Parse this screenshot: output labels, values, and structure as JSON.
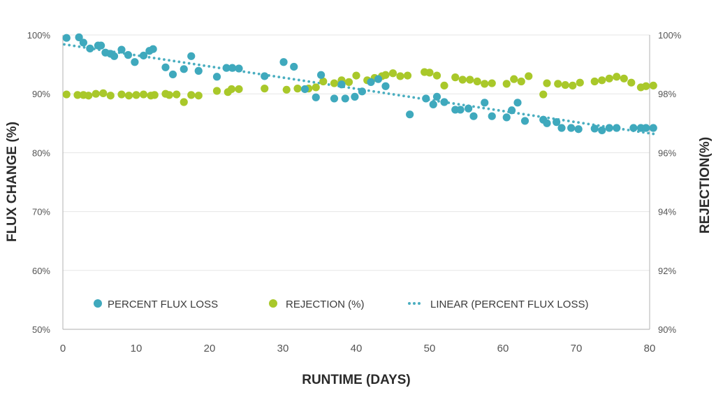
{
  "chart_data": {
    "type": "scatter",
    "title": "",
    "xlabel": "RUNTIME (DAYS)",
    "ylabel_left": "FLUX CHANGE (%)",
    "ylabel_right": "REJECTION(%)",
    "xlim": [
      0,
      80
    ],
    "ylim_left": [
      50,
      100
    ],
    "ylim_right": [
      90,
      100
    ],
    "x_ticks": [
      0,
      10,
      20,
      30,
      40,
      50,
      60,
      70,
      80
    ],
    "y_ticks_left": [
      "50%",
      "60%",
      "70%",
      "80%",
      "90%",
      "100%"
    ],
    "y_ticks_right": [
      "90%",
      "92%",
      "94%",
      "96%",
      "98%",
      "100%"
    ],
    "grid": "horizontal",
    "legend_position": "bottom-inside",
    "colors": {
      "flux": "#3fa9bd",
      "rejection": "#a9c82a",
      "trend": "#4aaec0"
    },
    "series": [
      {
        "name": "PERCENT FLUX LOSS",
        "axis": "left",
        "color": "#3fa9bd",
        "points": [
          [
            0.5,
            99.5
          ],
          [
            2.2,
            99.6
          ],
          [
            2.8,
            98.7
          ],
          [
            3.7,
            97.7
          ],
          [
            4.8,
            98.2
          ],
          [
            5.2,
            98.2
          ],
          [
            5.8,
            97
          ],
          [
            6.5,
            96.8
          ],
          [
            7,
            96.4
          ],
          [
            8,
            97.5
          ],
          [
            8.9,
            96.6
          ],
          [
            9.8,
            95.4
          ],
          [
            11,
            96.5
          ],
          [
            11.8,
            97.3
          ],
          [
            12.3,
            97.6
          ],
          [
            14,
            94.5
          ],
          [
            15,
            93.3
          ],
          [
            16.5,
            94.2
          ],
          [
            17.5,
            96.4
          ],
          [
            18.5,
            93.9
          ],
          [
            21,
            92.9
          ],
          [
            22.3,
            94.4
          ],
          [
            23.1,
            94.4
          ],
          [
            24,
            94.3
          ],
          [
            27.5,
            93
          ],
          [
            30.1,
            95.4
          ],
          [
            31.5,
            94.6
          ],
          [
            33,
            90.8
          ],
          [
            34.5,
            89.4
          ],
          [
            35.2,
            93.2
          ],
          [
            37,
            89.2
          ],
          [
            38,
            91.6
          ],
          [
            38.5,
            89.2
          ],
          [
            39.8,
            89.5
          ],
          [
            40.8,
            90.4
          ],
          [
            42,
            92
          ],
          [
            43,
            92.5
          ],
          [
            44,
            91.3
          ],
          [
            47.3,
            86.5
          ],
          [
            49.5,
            89.2
          ],
          [
            50.5,
            88.2
          ],
          [
            51,
            89.5
          ],
          [
            52,
            88.6
          ],
          [
            53.5,
            87.3
          ],
          [
            54.2,
            87.3
          ],
          [
            55.3,
            87.5
          ],
          [
            56,
            86.2
          ],
          [
            57.5,
            88.5
          ],
          [
            58.5,
            86.2
          ],
          [
            60.5,
            86
          ],
          [
            61.2,
            87.2
          ],
          [
            62,
            88.5
          ],
          [
            63,
            85.4
          ],
          [
            65.5,
            85.6
          ],
          [
            66,
            85
          ],
          [
            67.3,
            85.2
          ],
          [
            68,
            84.2
          ],
          [
            69.3,
            84.2
          ],
          [
            70.3,
            84
          ],
          [
            72.5,
            84.1
          ],
          [
            73.5,
            83.8
          ],
          [
            74.5,
            84.2
          ],
          [
            75.5,
            84.2
          ],
          [
            77.8,
            84.2
          ],
          [
            78.8,
            84.2
          ],
          [
            79.5,
            84.2
          ],
          [
            80.5,
            84.2
          ]
        ]
      },
      {
        "name": "REJECTION (%)",
        "axis": "right",
        "color": "#a9c82a",
        "points": [
          [
            0.5,
            97.98
          ],
          [
            2,
            97.96
          ],
          [
            2.8,
            97.96
          ],
          [
            3.5,
            97.94
          ],
          [
            4.5,
            98
          ],
          [
            5.5,
            98.02
          ],
          [
            6.5,
            97.94
          ],
          [
            8,
            97.98
          ],
          [
            9,
            97.94
          ],
          [
            10,
            97.96
          ],
          [
            11,
            97.98
          ],
          [
            12,
            97.94
          ],
          [
            12.5,
            97.96
          ],
          [
            14,
            98
          ],
          [
            14.5,
            97.96
          ],
          [
            15.5,
            97.98
          ],
          [
            16.5,
            97.72
          ],
          [
            17.5,
            97.96
          ],
          [
            18.5,
            97.94
          ],
          [
            21,
            98.1
          ],
          [
            22.5,
            98.06
          ],
          [
            23,
            98.16
          ],
          [
            24,
            98.16
          ],
          [
            27.5,
            98.18
          ],
          [
            30.5,
            98.14
          ],
          [
            32,
            98.18
          ],
          [
            33.5,
            98.18
          ],
          [
            34.5,
            98.22
          ],
          [
            35.5,
            98.42
          ],
          [
            37,
            98.36
          ],
          [
            38,
            98.46
          ],
          [
            39,
            98.4
          ],
          [
            40,
            98.62
          ],
          [
            41.5,
            98.46
          ],
          [
            42.5,
            98.54
          ],
          [
            43.5,
            98.6
          ],
          [
            44,
            98.64
          ],
          [
            45,
            98.7
          ],
          [
            46,
            98.6
          ],
          [
            47,
            98.62
          ],
          [
            49.3,
            98.74
          ],
          [
            50,
            98.72
          ],
          [
            51,
            98.62
          ],
          [
            52,
            98.28
          ],
          [
            53.5,
            98.56
          ],
          [
            54.5,
            98.48
          ],
          [
            55.5,
            98.48
          ],
          [
            56.5,
            98.42
          ],
          [
            57.5,
            98.34
          ],
          [
            58.5,
            98.36
          ],
          [
            60.5,
            98.34
          ],
          [
            61.5,
            98.5
          ],
          [
            62.5,
            98.42
          ],
          [
            63.5,
            98.6
          ],
          [
            65.5,
            97.98
          ],
          [
            66,
            98.36
          ],
          [
            67.5,
            98.34
          ],
          [
            68.5,
            98.3
          ],
          [
            69.5,
            98.28
          ],
          [
            70.5,
            98.38
          ],
          [
            72.5,
            98.42
          ],
          [
            73.5,
            98.46
          ],
          [
            74.5,
            98.52
          ],
          [
            75.5,
            98.58
          ],
          [
            76.5,
            98.52
          ],
          [
            77.5,
            98.38
          ],
          [
            78.8,
            98.22
          ],
          [
            79.5,
            98.26
          ],
          [
            80.5,
            98.28
          ]
        ]
      },
      {
        "name": "LINEAR (PERCENT FLUX LOSS)",
        "axis": "left",
        "color": "#4aaec0",
        "kind": "trendline",
        "start": [
          0,
          98.4
        ],
        "end": [
          80.5,
          83.2
        ]
      }
    ]
  }
}
